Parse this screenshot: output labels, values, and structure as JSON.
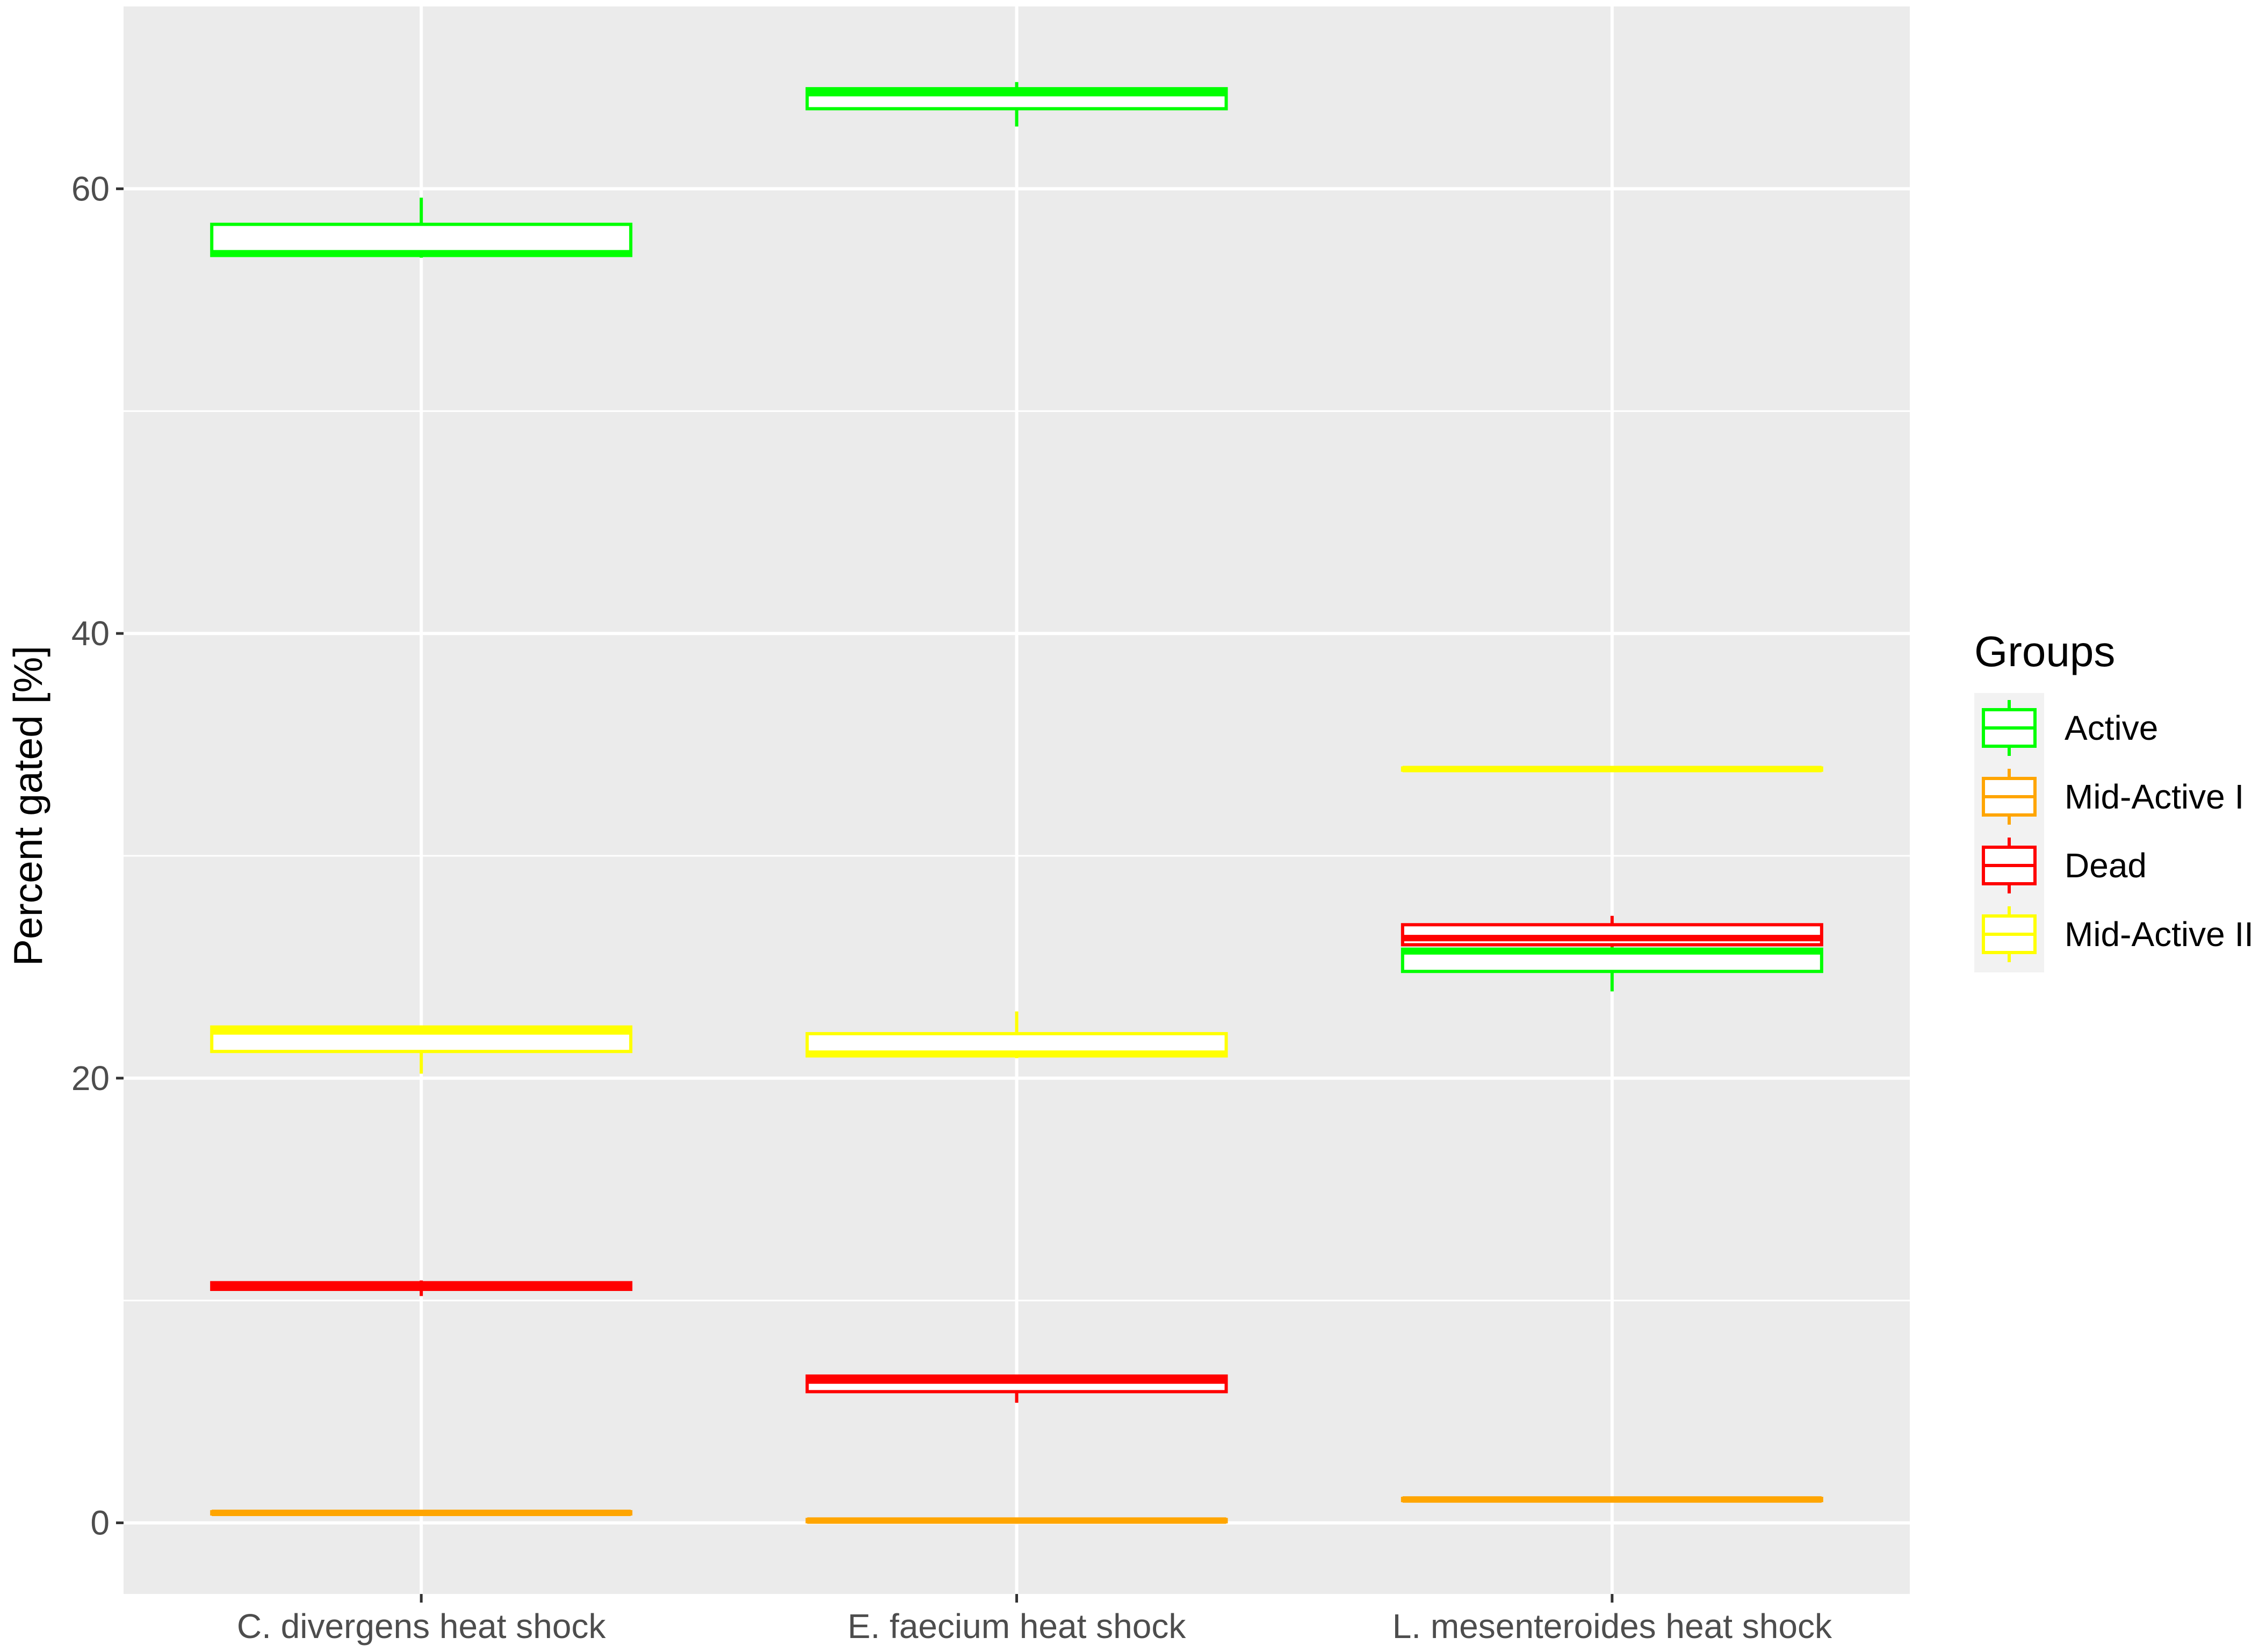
{
  "chart_data": {
    "type": "box",
    "ylabel": "Percent gated [%]",
    "xlabel": "",
    "title": "",
    "ylim": [
      -3.2,
      68.2
    ],
    "y_ticks": [
      0,
      20,
      40,
      60
    ],
    "y_minor_ticks": [
      10,
      30,
      50
    ],
    "grid": true,
    "legend": {
      "title": "Groups",
      "placement": "right"
    },
    "categories": [
      "C. divergens heat shock",
      "E. faecium heat shock",
      "L. mesenteroides heat shock"
    ],
    "series": [
      {
        "name": "Active",
        "color": "#00ff00",
        "boxes": [
          {
            "min": 56.9,
            "q1": 57.0,
            "median": 57.1,
            "q3": 58.4,
            "max": 59.6
          },
          {
            "min": 62.8,
            "q1": 63.6,
            "median": 64.3,
            "q3": 64.5,
            "max": 64.8
          },
          {
            "min": 23.9,
            "q1": 24.8,
            "median": 25.7,
            "q3": 25.8,
            "max": 25.9
          }
        ]
      },
      {
        "name": "Mid-Active I",
        "color": "#ffa500",
        "boxes": [
          {
            "min": 0.4,
            "q1": 0.4,
            "median": 0.45,
            "q3": 0.5,
            "max": 0.5
          },
          {
            "min": 0.05,
            "q1": 0.05,
            "median": 0.1,
            "q3": 0.15,
            "max": 0.15
          },
          {
            "min": 0.95,
            "q1": 1.0,
            "median": 1.05,
            "q3": 1.1,
            "max": 1.1
          }
        ]
      },
      {
        "name": "Dead",
        "color": "#ff0000",
        "boxes": [
          {
            "min": 10.2,
            "q1": 10.5,
            "median": 10.65,
            "q3": 10.8,
            "max": 10.9
          },
          {
            "min": 5.4,
            "q1": 5.9,
            "median": 6.4,
            "q3": 6.6,
            "max": 6.6
          },
          {
            "min": 25.9,
            "q1": 26.0,
            "median": 26.3,
            "q3": 26.9,
            "max": 27.3
          }
        ]
      },
      {
        "name": "Mid-Active II",
        "color": "#ffff00",
        "boxes": [
          {
            "min": 20.2,
            "q1": 21.2,
            "median": 22.1,
            "q3": 22.3,
            "max": 22.3
          },
          {
            "min": 20.9,
            "q1": 21.0,
            "median": 21.1,
            "q3": 22.0,
            "max": 23.0
          },
          {
            "min": 33.8,
            "q1": 33.85,
            "median": 33.9,
            "q3": 33.95,
            "max": 34.0
          }
        ]
      }
    ]
  }
}
